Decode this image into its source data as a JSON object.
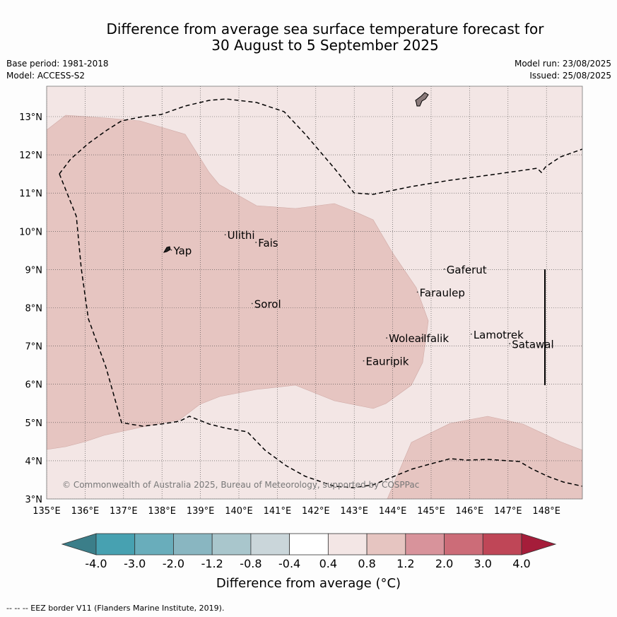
{
  "title": {
    "line1": "Difference from average sea surface temperature forecast for",
    "line2": "30 August to 5 September 2025"
  },
  "meta": {
    "base_period": "Base period: 1981-2018",
    "model": "Model: ACCESS-S2",
    "model_run": "Model run: 23/08/2025",
    "issued": "Issued: 25/08/2025"
  },
  "map": {
    "lon_range": [
      135,
      149
    ],
    "lat_range": [
      3,
      13.8
    ],
    "lat_ticks": [
      "3°N",
      "4°N",
      "5°N",
      "6°N",
      "7°N",
      "8°N",
      "9°N",
      "10°N",
      "11°N",
      "12°N",
      "13°N"
    ],
    "lon_ticks": [
      "135°E",
      "136°E",
      "137°E",
      "138°E",
      "139°E",
      "140°E",
      "141°E",
      "142°E",
      "143°E",
      "144°E",
      "145°E",
      "146°E",
      "147°E",
      "148°E"
    ],
    "places": [
      {
        "name": "Yap",
        "lon": 138.3,
        "lat": 9.4
      },
      {
        "name": "Ulithi",
        "lon": 139.7,
        "lat": 9.8
      },
      {
        "name": "Fais",
        "lon": 140.5,
        "lat": 9.6
      },
      {
        "name": "Sorol",
        "lon": 140.4,
        "lat": 8.0
      },
      {
        "name": "Gaferut",
        "lon": 145.4,
        "lat": 8.9
      },
      {
        "name": "Faraulep",
        "lon": 144.7,
        "lat": 8.3
      },
      {
        "name": "Lamotrek",
        "lon": 146.1,
        "lat": 7.2
      },
      {
        "name": "Satawal",
        "lon": 147.1,
        "lat": 6.95
      },
      {
        "name": "Woleai",
        "lon": 143.9,
        "lat": 7.1
      },
      {
        "name": "Ifalik",
        "lon": 144.8,
        "lat": 7.1
      },
      {
        "name": "Eauripik",
        "lon": 143.3,
        "lat": 6.5
      }
    ],
    "copyright": "© Commonwealth of Australia 2025, Bureau of Meteorology, supported by COSPPac",
    "colors": {
      "band_0.4_0.8": "#f3e6e5",
      "band_0.8_1.2": "#e6c5c1"
    }
  },
  "colorbar": {
    "labels": [
      "-4.0",
      "-3.0",
      "-2.0",
      "-1.2",
      "-0.8",
      "-0.4",
      "0.4",
      "0.8",
      "1.2",
      "2.0",
      "3.0",
      "4.0"
    ],
    "colors": [
      "#3b7e89",
      "#47a1b1",
      "#69adbb",
      "#89b6c1",
      "#a9c6cc",
      "#cad6da",
      "#ffffff",
      "#f3e6e5",
      "#e6c5c1",
      "#d8939b",
      "#cc6c78",
      "#bf4657",
      "#a51d3a"
    ],
    "title": "Difference from average (°C)"
  },
  "footer": "--  --  -- EEZ border V11 (Flanders Marine Institute, 2019)."
}
